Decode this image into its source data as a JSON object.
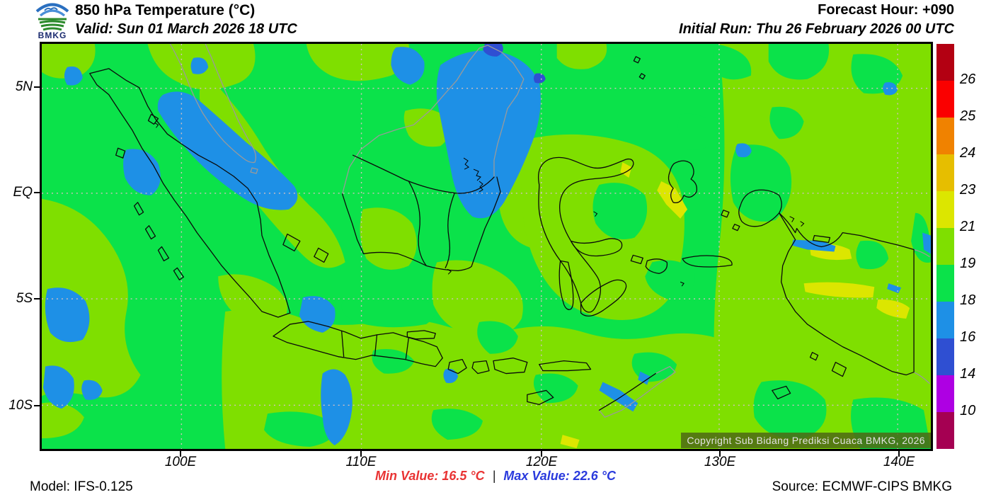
{
  "header": {
    "logo_text": "BMKG",
    "title": "850 hPa Temperature (°C)",
    "valid_line": "Valid: Sun 01 March 2026 18 UTC",
    "forecast_hour": "Forecast Hour: +090",
    "initial_run": "Initial Run: Thu 26 February 2026 00 UTC"
  },
  "map": {
    "x_axis_labels": [
      "100E",
      "110E",
      "120E",
      "130E",
      "140E"
    ],
    "y_axis_labels": [
      "5N",
      "EQ",
      "5S",
      "10S"
    ],
    "copyright": "Copyright Sub Bidang Prediksi Cuaca BMKG, 2026"
  },
  "colorbar": {
    "boundary_labels": [
      "26",
      "25",
      "24",
      "23",
      "21",
      "19",
      "18",
      "16",
      "14",
      "10"
    ],
    "segment_colors": [
      "#B30012",
      "#FA0000",
      "#F08200",
      "#E6BE00",
      "#DCE600",
      "#7FDF00",
      "#0BE24A",
      "#1E90E6",
      "#2F4FD2",
      "#AE00E3",
      "#A50052"
    ]
  },
  "palette": {
    "map_green": "#0BE24A",
    "map_chartreuse": "#7FDF00",
    "map_light_blue": "#1E90E6",
    "map_royal_blue": "#2F4FD2",
    "map_yellow": "#DCE600",
    "min_text": "#e93333",
    "max_text": "#2a3add"
  },
  "footer": {
    "model": "Model: IFS-0.125",
    "min_value": "Min Value: 16.5 °C",
    "separator": "|",
    "max_value": "Max Value: 22.6 °C",
    "source": "Source: ECMWF-CIPS BMKG"
  }
}
